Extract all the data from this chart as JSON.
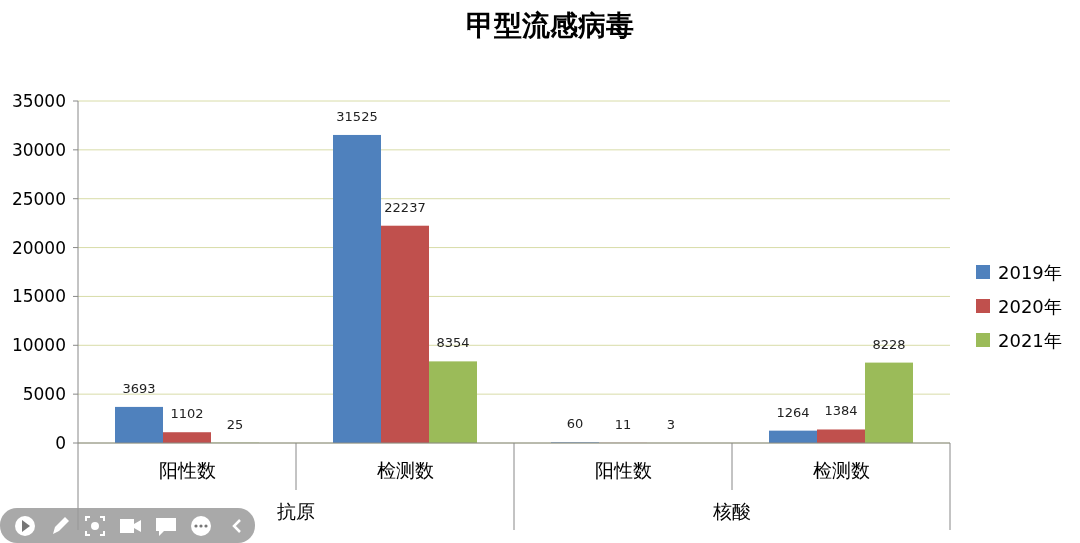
{
  "chart_data": {
    "type": "bar",
    "title": "甲型流感病毒",
    "categories": [
      "阳性数",
      "检测数",
      "阳性数",
      "检测数"
    ],
    "annotations": [
      "抗原",
      "核酸"
    ],
    "series": [
      {
        "name": "2019年",
        "color": "#4f81bd",
        "values": [
          3693,
          31525,
          60,
          1264
        ]
      },
      {
        "name": "2020年",
        "color": "#c0504d",
        "values": [
          1102,
          22237,
          11,
          1384
        ]
      },
      {
        "name": "2021年",
        "color": "#9bbb59",
        "values": [
          25,
          8354,
          3,
          8228
        ]
      }
    ],
    "ylim": [
      0,
      35000
    ],
    "yticks": [
      0,
      5000,
      10000,
      15000,
      20000,
      25000,
      30000,
      35000
    ],
    "grid": "y",
    "legend": "right",
    "data_labels": true
  }
}
